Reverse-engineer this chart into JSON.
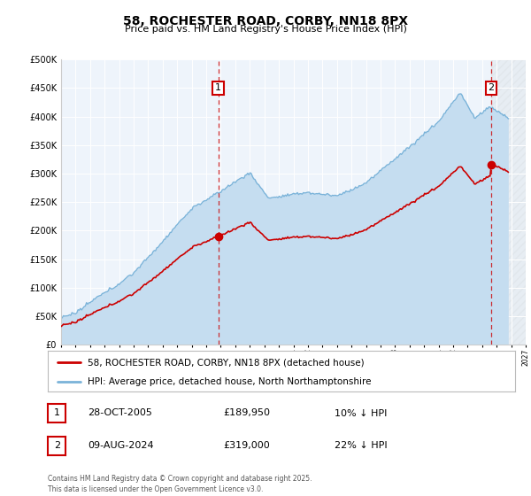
{
  "title1": "58, ROCHESTER ROAD, CORBY, NN18 8PX",
  "title2": "Price paid vs. HM Land Registry's House Price Index (HPI)",
  "legend1": "58, ROCHESTER ROAD, CORBY, NN18 8PX (detached house)",
  "legend2": "HPI: Average price, detached house, North Northamptonshire",
  "annotation1_label": "1",
  "annotation1_date": "28-OCT-2005",
  "annotation1_price": "£189,950",
  "annotation1_hpi": "10% ↓ HPI",
  "annotation2_label": "2",
  "annotation2_date": "09-AUG-2024",
  "annotation2_price": "£319,000",
  "annotation2_hpi": "22% ↓ HPI",
  "copyright": "Contains HM Land Registry data © Crown copyright and database right 2025.\nThis data is licensed under the Open Government Licence v3.0.",
  "hpi_color": "#7ab3d9",
  "hpi_fill_color": "#c5ddf0",
  "price_color": "#cc0000",
  "background_chart": "#eef4fb",
  "sale1_year": 2005.82,
  "sale1_price": 189950,
  "sale2_year": 2024.62,
  "sale2_price": 319000,
  "ylim": [
    0,
    500000
  ],
  "yticks": [
    0,
    50000,
    100000,
    150000,
    200000,
    250000,
    300000,
    350000,
    400000,
    450000,
    500000
  ],
  "year_start": 1995,
  "year_end": 2027
}
